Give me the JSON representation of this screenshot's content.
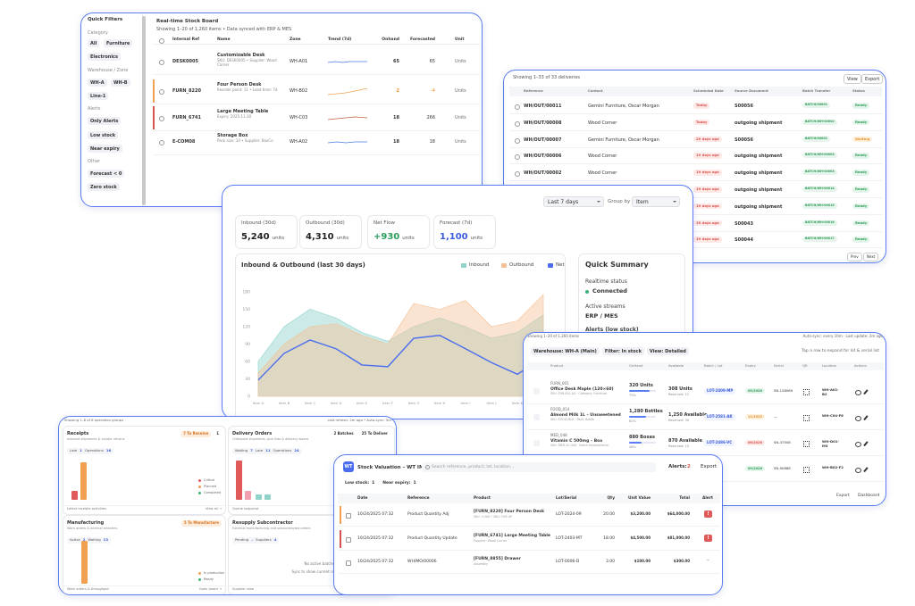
{
  "stock_board": {
    "filters": {
      "title": "Quick Filters",
      "groups": [
        {
          "label": "Category",
          "chips": [
            "All",
            "Furniture",
            "Electronics"
          ]
        },
        {
          "label": "Warehouse / Zone",
          "chips": [
            "WH-A",
            "WH-B",
            "Line-1"
          ]
        },
        {
          "label": "Alerts",
          "chips": [
            "Only Alerts",
            "Low stock",
            "Near expiry"
          ]
        },
        {
          "label": "Other",
          "chips": [
            "Forecast < 0",
            "Zero stock"
          ]
        }
      ]
    },
    "title": "Real-time Stock Board",
    "subtitle": "Showing 1–20 of 1,260 items • Data synced with ERP & MES",
    "columns": [
      "Internal Ref",
      "Name",
      "Zone",
      "Trend (7d)",
      "Onhand",
      "Forecasted",
      "Unit"
    ],
    "rows": [
      {
        "ref": "DESK0005",
        "name": "Customizable Desk",
        "detail": "SKU: DESK0005 • Supplier: Wood Corner",
        "zone": "WH-A01",
        "onhand": "65",
        "forecasted": "65",
        "unit": "Units"
      },
      {
        "ref": "FURN_8220",
        "name": "Four Person Desk",
        "detail": "Reorder point: 11 • Lead time: 7d",
        "zone": "WH-B02",
        "onhand": "2",
        "forecasted": "-4",
        "unit": "Units"
      },
      {
        "ref": "FURN_6741",
        "name": "Large Meeting Table",
        "detail": "Expiry: 2025-11-30",
        "zone": "WH-C03",
        "onhand": "18",
        "forecasted": "266",
        "unit": "Units"
      },
      {
        "ref": "E-COM08",
        "name": "Storage Box",
        "detail": "Pack size: 10 • Supplier: BoxCo",
        "zone": "WH-A02",
        "onhand": "18",
        "forecasted": "18",
        "unit": "Units"
      }
    ]
  },
  "deliveries": {
    "summary": "Showing 1–33 of 33 deliveries",
    "actions": [
      "View",
      "Export"
    ],
    "columns": [
      "Reference",
      "Contact",
      "Scheduled Date",
      "Source Document",
      "Batch Transfer",
      "Status"
    ],
    "rows": [
      {
        "reference": "WH/OUT/00011",
        "contact": "Gemini Furniture, Oscar Morgan",
        "date": "Today",
        "source": "S00056",
        "batch": "BATCH/00001",
        "status": "Ready"
      },
      {
        "reference": "WH/OUT/00008",
        "contact": "Wood Corner",
        "date": "Today",
        "source": "outgoing shipment",
        "batch": "BATCH/WH-00002",
        "status": "Ready"
      },
      {
        "reference": "WH/OUT/00007",
        "contact": "Gemini Furniture, Oscar Morgan",
        "date": "29 days ago",
        "source": "S00056",
        "batch": "BATCH/00001",
        "status": "Waiting"
      },
      {
        "reference": "WH/OUT/00006",
        "contact": "Wood Corner",
        "date": "19 days ago",
        "source": "outgoing shipment",
        "batch": "BATCH/WH-00003",
        "status": "Ready"
      },
      {
        "reference": "WH/OUT/00002",
        "contact": "Wood Corner",
        "date": "19 days ago",
        "source": "outgoing shipment",
        "batch": "BATCH/WH-00003",
        "status": "Ready"
      },
      {
        "date": "19 days ago",
        "source": "outgoing shipment",
        "batch": "BATCH/WH-00014",
        "status": "Ready"
      },
      {
        "date": "19 days ago",
        "source": "outgoing shipment",
        "batch": "BATCH/WH-00015",
        "status": "Ready"
      },
      {
        "date": "19 days ago",
        "source": "S00043",
        "batch": "BATCH/WH-00016",
        "status": "Ready"
      },
      {
        "date": "19 days ago",
        "source": "S00044",
        "batch": "BATCH/WH-00017",
        "status": "Ready"
      }
    ],
    "pager": [
      "Prev",
      "Next"
    ]
  },
  "dashboard": {
    "period": "Last 7 days",
    "group_label": "Group by",
    "group_value": "Item",
    "stats": [
      {
        "label": "Inbound (30d)",
        "value": "5,240",
        "unit": "units"
      },
      {
        "label": "Outbound (30d)",
        "value": "4,310",
        "unit": "units"
      },
      {
        "label": "Net Flow",
        "value": "+930",
        "unit": "units"
      },
      {
        "label": "Forecast (7d)",
        "value": "1,100",
        "unit": "units"
      }
    ],
    "summary": {
      "title": "Quick Summary",
      "items": [
        {
          "label": "Realtime status",
          "value": "Connected"
        },
        {
          "label": "Active streams",
          "value": "ERP / MES"
        },
        {
          "label": "Alerts (low stock)"
        }
      ]
    }
  },
  "chart_data": {
    "type": "area",
    "title": "Inbound & Outbound (last 30 days)",
    "categories": [
      "Item A",
      "Item B",
      "Item C",
      "Item D",
      "Item E",
      "Item F",
      "Item G",
      "Item H",
      "Item I",
      "Item J",
      "Item K",
      "Item L"
    ],
    "series": [
      {
        "name": "Inbound",
        "color": "#8fd3cb",
        "values": [
          60,
          120,
          150,
          135,
          110,
          95,
          120,
          135,
          120,
          100,
          110,
          140
        ]
      },
      {
        "name": "Outbound",
        "color": "#f4c096",
        "values": [
          40,
          90,
          120,
          125,
          105,
          90,
          160,
          150,
          165,
          120,
          130,
          175
        ]
      },
      {
        "name": "Net",
        "color": "#4a6cf0",
        "values": [
          28,
          74,
          97,
          82,
          54,
          51,
          100,
          105,
          82,
          58,
          38,
          66
        ]
      }
    ],
    "ylim": [
      0,
      180
    ],
    "yticks": [
      0,
      30,
      60,
      90,
      120,
      150,
      180
    ]
  },
  "inventory": {
    "summary": "Showing 1–20 of 1,260 items",
    "sync": "Auto-sync: every 10m · Last update: 2m ago",
    "filters": [
      "Warehouse: WH-A (Main)",
      "Filter: In stock",
      "View: Detailed"
    ],
    "hint": "Tap a row to expand for lot & serial list",
    "columns": [
      "Product",
      "OnHand",
      "Available",
      "Batch / Lot",
      "Expiry",
      "Serial",
      "QR",
      "Location",
      "Actions"
    ],
    "rows": [
      {
        "ref": "FURN_001",
        "name": "Office Desk Maple (120×60)",
        "detail": "SKU: FUR-001-A4 · Category: Furniture",
        "onhand": "320 Units",
        "pct": 75,
        "pct_label": "75%",
        "available": "308 Units",
        "reserved": "Reserved: 12",
        "lot": "LOT-2409-MP",
        "expiry": "05/2026",
        "serial": "SN-128089",
        "location": "WH-A01-B2"
      },
      {
        "ref": "FOOD_014",
        "name": "Almond Milk 1L – Unsweetened",
        "detail": "SKU: FOOD-MLK · Pack: Bottle",
        "onhand": "1,280 Bottles",
        "pct": 62,
        "pct_label": "62%",
        "available": "1,250 Available",
        "reserved": "Reserved: 30",
        "lot": "LOT-2581-AK",
        "expiry": "11/2025",
        "serial": "—",
        "location": "WH-C04-F6"
      },
      {
        "ref": "MED_048",
        "name": "Vitamin C 500mg – Box",
        "detail": "SKU: MED-VC-500 · Batch tracked/serial",
        "onhand": "880 Boxes",
        "pct": 48,
        "pct_label": "48%",
        "available": "870 Available",
        "reserved": "Reserved: 10",
        "lot": "LOT-2486-VC",
        "expiry": "06/2026",
        "serial": "SN-47508",
        "location": "WH-D01-M3"
      },
      {
        "expiry": "09/2026",
        "serial": "SN-90888",
        "location": "WH-B02-F2"
      }
    ],
    "footer": [
      "Export",
      "Dashboard"
    ]
  },
  "operations": {
    "summary": "Showing 1–8 of 8 operation groups",
    "refresh": "Last refresh: 2m ago • Auto-sync: 5m",
    "panels": [
      {
        "title": "Receipts",
        "subtitle": "Inbound shipments & vendor returns",
        "actions": [
          "7 To Receive",
          "1"
        ],
        "chips": [
          "Late",
          "1",
          "Operations",
          "16"
        ],
        "legend": [
          "Critical",
          "Planned",
          "Completed"
        ],
        "footer": [
          "Latest receipts activities",
          "View all →"
        ]
      },
      {
        "title": "Delivery Orders",
        "subtitle": "Outbound shipments, pick lists & delivery waves",
        "actions": [
          "2 Batches",
          "25 To Deliver"
        ],
        "chips": [
          "Waiting",
          "7",
          "Late",
          "11",
          "Operations",
          "24"
        ],
        "footer": [
          "Queue snapshot"
        ]
      },
      {
        "title": "Manufacturing",
        "subtitle": "Work orders & internal transfers",
        "actions": [
          "5 To Manufacture"
        ],
        "chips": [
          "Active",
          "2",
          "Waiting",
          "13"
        ],
        "legend": [
          "In production",
          "Ready"
        ],
        "footer": [
          "Work orders & throughput",
          "Open board →"
        ]
      },
      {
        "title": "Resupply Subcontractor",
        "subtitle": "External manufacturing and subcontracted orders",
        "chips": [
          "Pending",
          "–",
          "Suppliers",
          "4"
        ],
        "messages": [
          "No active batches",
          "Sync to show current resupply..."
        ],
        "footer": [
          "Supplier view",
          "Manage subcontractors →"
        ]
      }
    ]
  },
  "valuation": {
    "logo": "WT",
    "title": "Stock Valuation – WT IMS",
    "search": "Search reference, product, lot, location...",
    "alerts_label": "Alerts:",
    "alerts_count": "2",
    "export": "Export",
    "filters": [
      "Low stock:",
      "1",
      "Near expiry:",
      "1"
    ],
    "columns": [
      "Date",
      "Reference",
      "Product",
      "Lot/Serial",
      "Qty",
      "Unit Value",
      "Total",
      "Alert"
    ],
    "rows": [
      {
        "date": "10/24/2025 07:32",
        "reference": "Product Quantity Adj",
        "product": "[FURN_8220] Four Person Desk",
        "detail": "SKU: 4,300 • SKU: FUR-4P",
        "lot": "LOT-2024-09",
        "qty": "20.00",
        "unit": "$3,200.00",
        "total": "$64,000.00",
        "alert": "!"
      },
      {
        "date": "10/24/2025 07:32",
        "reference": "Product Quantity Update",
        "product": "[FURN_6741] Large Meeting Table",
        "detail": "Supplier: Wood Corner",
        "lot": "LOT-2403-MT",
        "qty": "18.00",
        "unit": "$4,500.00",
        "total": "$81,000.00",
        "alert": "!"
      },
      {
        "date": "10/24/2025 07:32",
        "reference": "WH/MO/00006",
        "product": "[FURN_8855] Drawer",
        "detail": "Assembly",
        "lot": "LOT-0006-D",
        "qty": "3.00",
        "unit": "$100.00",
        "total": "$300.00",
        "alert": "–"
      }
    ]
  }
}
